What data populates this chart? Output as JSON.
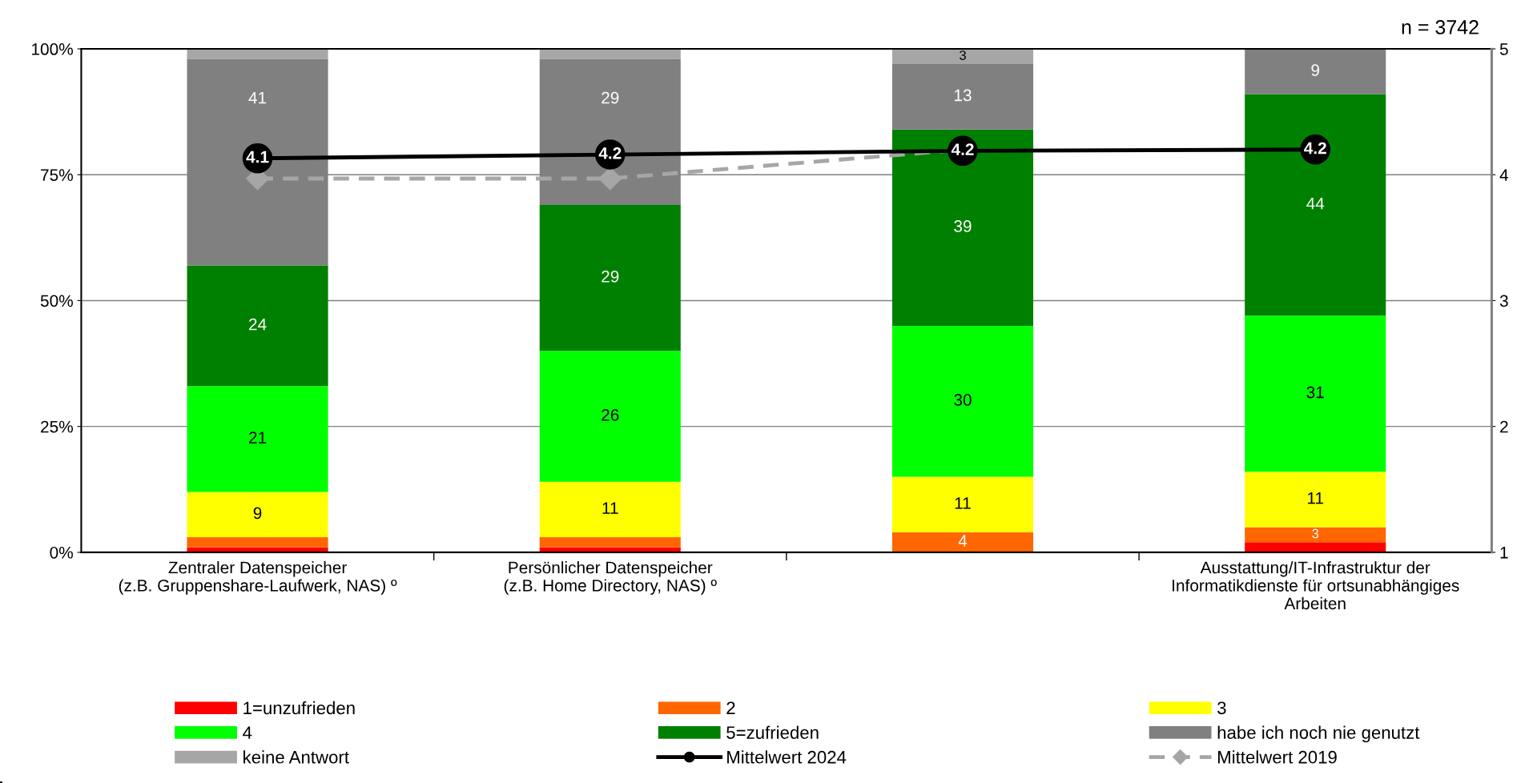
{
  "chart_data": {
    "type": "bar",
    "stacked": true,
    "categories": [
      "Zentraler Datenspeicher\n(z.B. Gruppenshare-Laufwerk, NAS) º",
      "Persönlicher Datenspeicher\n(z.B. Home Directory, NAS) º",
      null,
      "Ausstattung/IT-Infrastruktur der\nInformatikdienste für ortsunabhängiges\nArbeiten"
    ],
    "series": [
      {
        "name": "1=unzufrieden",
        "color": "#ff0000",
        "values": [
          1,
          1,
          0,
          2
        ],
        "value_labels": [
          null,
          null,
          null,
          null
        ]
      },
      {
        "name": "2",
        "color": "#ff6600",
        "values": [
          2,
          2,
          4,
          3
        ],
        "value_labels": [
          null,
          null,
          "4",
          "3"
        ]
      },
      {
        "name": "3",
        "color": "#ffff00",
        "values": [
          9,
          11,
          11,
          11
        ],
        "value_labels": [
          "9",
          "11",
          "11",
          "11"
        ]
      },
      {
        "name": "4",
        "color": "#00ff00",
        "values": [
          21,
          26,
          30,
          31
        ],
        "value_labels": [
          "21",
          "26",
          "30",
          "31"
        ]
      },
      {
        "name": "5=zufrieden",
        "color": "#008000",
        "values": [
          24,
          29,
          39,
          44
        ],
        "value_labels": [
          "24",
          "29",
          "39",
          "44"
        ]
      },
      {
        "name": "habe ich noch nie genutzt",
        "color": "#808080",
        "values": [
          41,
          29,
          13,
          9
        ],
        "value_labels": [
          "41",
          "29",
          "13",
          "9"
        ]
      },
      {
        "name": "keine Antwort",
        "color": "#a6a6a6",
        "values": [
          2,
          2,
          3,
          0.4
        ],
        "value_labels": [
          null,
          null,
          "3",
          null
        ]
      },
      {
        "name": "Mittelwert 2024",
        "type": "line",
        "axis": "y2",
        "color": "#000000",
        "marker": "circle",
        "line_style": "solid",
        "values": [
          4.13,
          4.16,
          4.19,
          4.2
        ],
        "value_labels": [
          "4.1",
          "4.2",
          "4.2",
          "4.2"
        ]
      },
      {
        "name": "Mittelwert 2019",
        "type": "line",
        "axis": "y2",
        "color": "#a6a6a6",
        "marker": "diamond",
        "line_style": "dashed",
        "values": [
          3.97,
          3.97,
          4.2,
          null
        ]
      }
    ],
    "ylim": [
      0,
      100
    ],
    "yticks": [
      {
        "value": 0,
        "label": "0%"
      },
      {
        "value": 25,
        "label": "25%"
      },
      {
        "value": 50,
        "label": "50%"
      },
      {
        "value": 75,
        "label": "75%"
      },
      {
        "value": 100,
        "label": "100%"
      }
    ],
    "y2lim": [
      1,
      5
    ],
    "y2ticks": [
      1,
      2,
      3,
      4,
      5
    ],
    "grid": "y",
    "legend": "bottom",
    "annotations": [
      "n = 3742"
    ]
  }
}
